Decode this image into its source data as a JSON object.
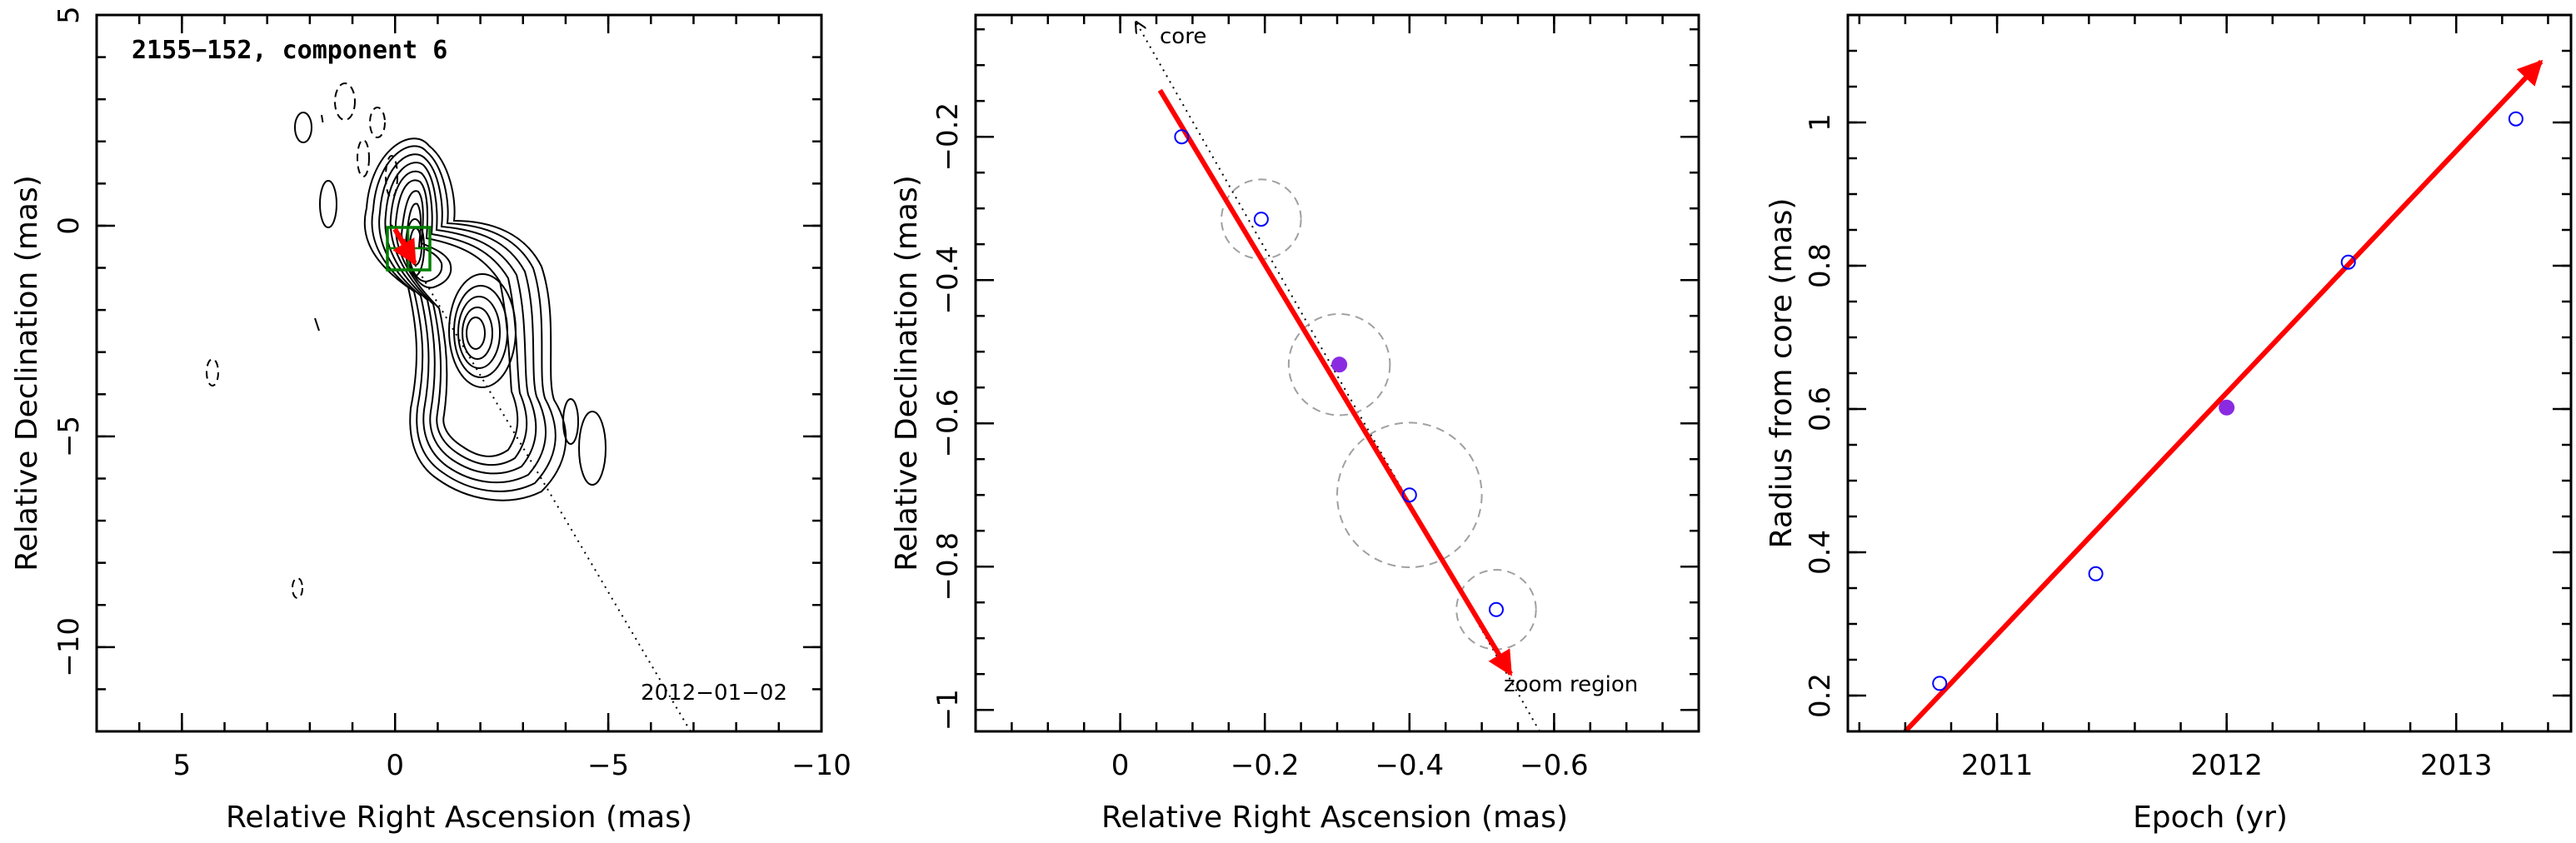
{
  "colors": {
    "accent_red": "#ff0000",
    "open_marker": "#0000ff",
    "filled_marker": "#8a2be2",
    "box_green": "#008000",
    "circle_gray": "#a0a0a0"
  },
  "panels": {
    "left": {
      "title": "2155−152, component 6",
      "date": "2012−01−02"
    },
    "middle": {
      "note_core": "core",
      "note_zoom": "zoom region"
    }
  },
  "chart_data": [
    {
      "type": "scatter",
      "title": "2155−152, component 6",
      "xlabel": "Relative Right Ascension (mas)",
      "ylabel": "Relative Declination (mas)",
      "xlim": [
        7,
        -10
      ],
      "ylim": [
        -12,
        5
      ],
      "xticks": [
        "5",
        "0",
        "−5",
        "−10"
      ],
      "xtick_values": [
        5,
        0,
        -5,
        -10
      ],
      "yticks": [
        "5",
        "0",
        "−5",
        "−10"
      ],
      "ytick_values": [
        5,
        0,
        -5,
        -10
      ],
      "annotation": "2012−01−02",
      "zoom_box": {
        "x": [
          -0.75,
          0.25
        ],
        "y": [
          -1.05,
          -0.05
        ]
      },
      "motion_vector": {
        "start": [
          -0.08,
          -0.13
        ],
        "end": [
          -0.5,
          -0.9
        ]
      },
      "core_line": {
        "start": [
          0,
          0
        ],
        "end": [
          -7,
          -11.9
        ]
      }
    },
    {
      "type": "scatter",
      "xlabel": "Relative Right Ascension (mas)",
      "ylabel": "Relative Declination (mas)",
      "xlim": [
        0.2,
        -0.8
      ],
      "ylim": [
        -1.03,
        -0.03
      ],
      "xticks": [
        "0",
        "−0.2",
        "−0.4",
        "−0.6"
      ],
      "xtick_values": [
        0,
        -0.2,
        -0.4,
        -0.6
      ],
      "yticks": [
        "−0.2",
        "−0.4",
        "−0.6",
        "−0.8",
        "−1"
      ],
      "ytick_values": [
        -0.2,
        -0.4,
        -0.6,
        -0.8,
        -1.0
      ],
      "points": [
        {
          "x": -0.085,
          "y": -0.2,
          "err": 0
        },
        {
          "x": -0.195,
          "y": -0.315,
          "err": 0.055
        },
        {
          "x": -0.303,
          "y": -0.518,
          "err": 0.07,
          "filled": true
        },
        {
          "x": -0.4,
          "y": -0.7,
          "err": 0.1
        },
        {
          "x": -0.52,
          "y": -0.86,
          "err": 0.055
        }
      ],
      "motion_vector": {
        "start": [
          -0.055,
          -0.135
        ],
        "end": [
          -0.54,
          -0.95
        ]
      },
      "core_direction": {
        "start": [
          -0.022,
          -0.04
        ],
        "end": [
          -0.58,
          -1.03
        ]
      },
      "annotations": [
        "core",
        "zoom region"
      ]
    },
    {
      "type": "scatter",
      "xlabel": "Epoch (yr)",
      "ylabel": "Radius from core (mas)",
      "xlim": [
        2010.35,
        2013.5
      ],
      "ylim": [
        0.15,
        1.15
      ],
      "xticks": [
        "2011",
        "2012",
        "2013"
      ],
      "xtick_values": [
        2011,
        2012,
        2013
      ],
      "yticks": [
        "0.2",
        "0.4",
        "0.6",
        "0.8",
        "1"
      ],
      "ytick_values": [
        0.2,
        0.4,
        0.6,
        0.8,
        1.0
      ],
      "points": [
        {
          "x": 2010.75,
          "y": 0.217
        },
        {
          "x": 2011.43,
          "y": 0.37
        },
        {
          "x": 2012.0,
          "y": 0.602,
          "filled": true
        },
        {
          "x": 2012.53,
          "y": 0.805
        },
        {
          "x": 2013.26,
          "y": 1.005
        }
      ],
      "fit_line": {
        "start": [
          2010.6,
          0.15
        ],
        "end": [
          2013.37,
          1.085
        ]
      }
    }
  ]
}
